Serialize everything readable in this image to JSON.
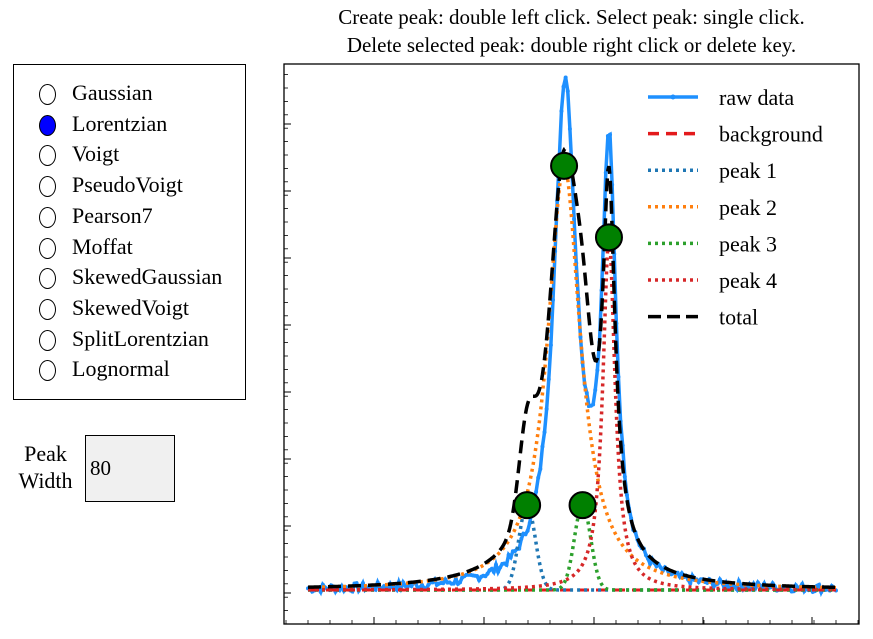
{
  "instructions": {
    "line1": "Create peak: double left click.  Select peak: single click.",
    "line2": "Delete selected peak: double right click or delete key."
  },
  "peak_shapes": {
    "options": [
      "Gaussian",
      "Lorentzian",
      "Voigt",
      "PseudoVoigt",
      "Pearson7",
      "Moffat",
      "SkewedGaussian",
      "SkewedVoigt",
      "SplitLorentzian",
      "Lognormal"
    ],
    "selected": "Lorentzian"
  },
  "peak_width": {
    "label": "Peak\nWidth",
    "value": "80"
  },
  "chart_data": {
    "type": "line",
    "title": "",
    "xlabel": "",
    "ylabel": "",
    "xlim": [
      0,
      1000
    ],
    "ylim": [
      -0.05,
      1.33
    ],
    "tick_labels_shown": false,
    "legend_position": "top-right",
    "background_level": 0.0,
    "series": [
      {
        "name": "raw data",
        "color": "#1e90ff",
        "style": "solid-with-markers"
      },
      {
        "name": "background",
        "color": "#e31a1c",
        "style": "dashed"
      },
      {
        "name": "peak 1",
        "color": "#1f77b4",
        "style": "dotted",
        "center": 415,
        "amplitude": 0.19,
        "width": 22
      },
      {
        "name": "peak 2",
        "color": "#ff7f0e",
        "style": "dotted",
        "center": 485,
        "amplitude": 0.95,
        "width": 38
      },
      {
        "name": "peak 3",
        "color": "#2ca02c",
        "style": "dotted",
        "center": 520,
        "amplitude": 0.19,
        "width": 22
      },
      {
        "name": "peak 4",
        "color": "#d62728",
        "style": "dotted",
        "center": 570,
        "amplitude": 0.79,
        "width": 22
      },
      {
        "name": "total",
        "color": "#000000",
        "style": "dashed"
      }
    ],
    "selected_peak_markers": [
      {
        "x": 415,
        "y": 0.19
      },
      {
        "x": 485,
        "y": 0.95
      },
      {
        "x": 520,
        "y": 0.19
      },
      {
        "x": 570,
        "y": 0.79
      }
    ],
    "raw_data_peaks": [
      {
        "center": 487,
        "amplitude": 1.12
      },
      {
        "center": 570,
        "amplitude": 0.93
      }
    ]
  }
}
